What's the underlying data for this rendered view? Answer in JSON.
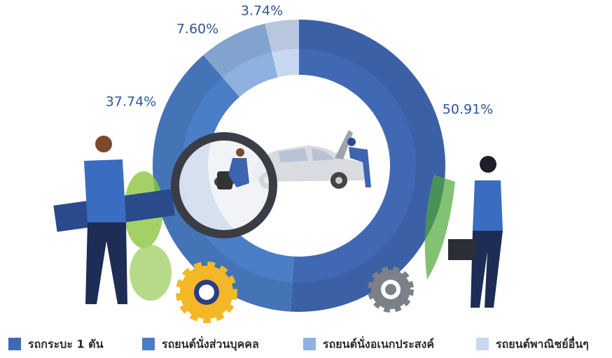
{
  "chart_data": {
    "type": "pie",
    "categories": [
      "รถกระบะ 1 ตัน",
      "รถยนต์นั่งส่วนบุคคล",
      "รถยนต์นั่งอเนกประสงค์",
      "รถยนต์พาณิชย์อื่นๆ"
    ],
    "values": [
      50.91,
      37.74,
      7.6,
      3.74
    ],
    "value_labels": [
      "50.91%",
      "37.74%",
      "7.60%",
      "3.74%"
    ],
    "colors": [
      "#4169b3",
      "#4a7ec6",
      "#8eb1e0",
      "#c8d8f0"
    ],
    "legend": "bottom"
  }
}
